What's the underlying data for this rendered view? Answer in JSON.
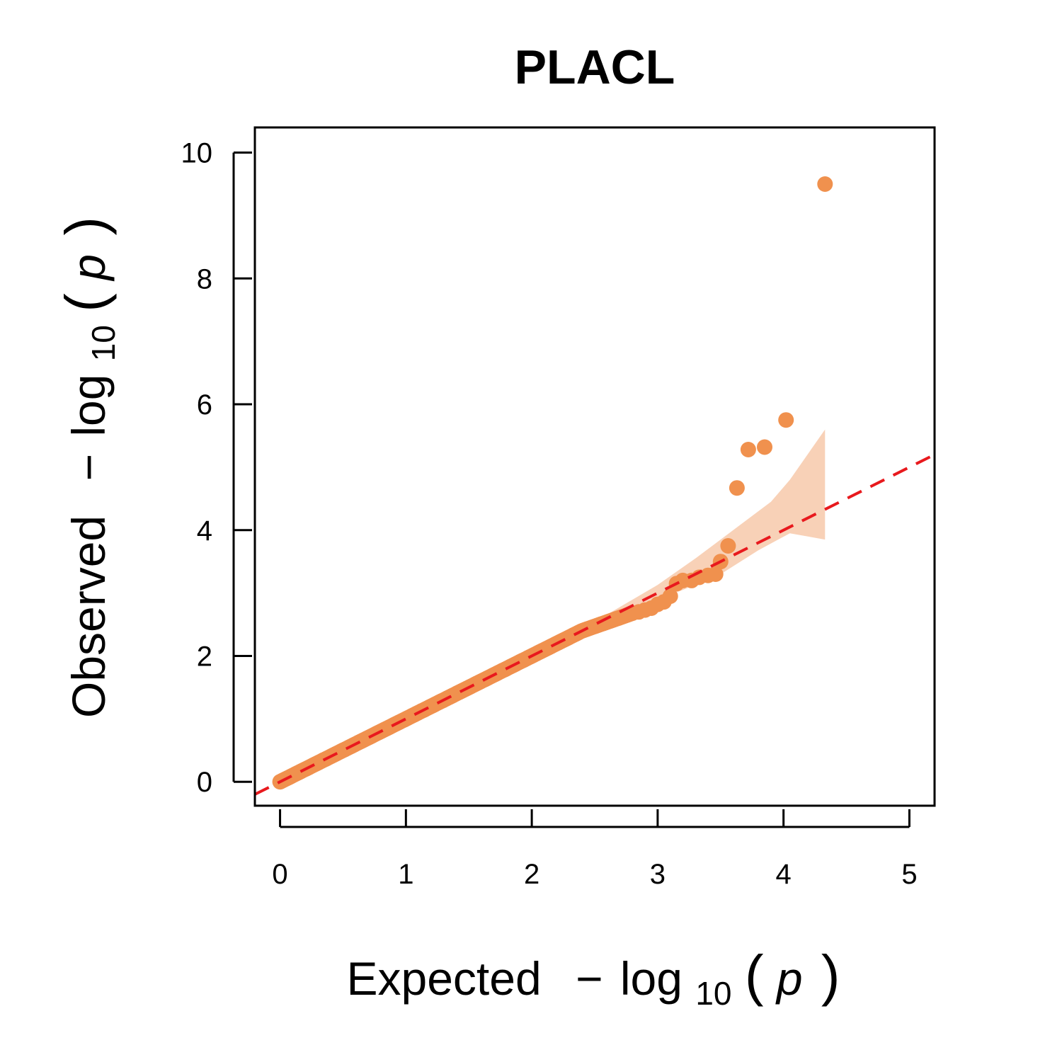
{
  "chart_data": {
    "type": "scatter",
    "title": "PLACL",
    "xlabel": {
      "prefix": "Expected",
      "minus": "−",
      "log": "log",
      "sub": "10",
      "open": "(",
      "var": "p",
      "close": ")"
    },
    "ylabel": {
      "prefix": "Observed",
      "minus": "−",
      "log": "log",
      "sub": "10",
      "open": "(",
      "var": "p",
      "close": ")"
    },
    "xlim": [
      -0.2,
      5.2
    ],
    "ylim": [
      -0.38,
      10.4
    ],
    "x_ticks": [
      "0",
      "1",
      "2",
      "3",
      "4",
      "5"
    ],
    "y_ticks": [
      "0",
      "2",
      "4",
      "6",
      "8",
      "10"
    ],
    "grid": false,
    "point_color": "#f0914e",
    "band_color": "#f5c29f",
    "reference_line_color": "#e8191d",
    "reference_line": {
      "slope": 1,
      "intercept": 0,
      "style": "dashed"
    },
    "confidence_band": {
      "upper": [
        [
          2.3,
          2.3
        ],
        [
          2.6,
          2.66
        ],
        [
          3.0,
          3.13
        ],
        [
          3.3,
          3.55
        ],
        [
          3.6,
          4.0
        ],
        [
          3.9,
          4.45
        ],
        [
          4.05,
          4.8
        ],
        [
          4.33,
          5.6
        ]
      ],
      "lower": [
        [
          4.33,
          3.85
        ],
        [
          4.05,
          3.95
        ],
        [
          3.8,
          3.68
        ],
        [
          3.5,
          3.3
        ],
        [
          3.2,
          3.05
        ],
        [
          2.9,
          2.82
        ],
        [
          2.6,
          2.57
        ],
        [
          2.3,
          2.3
        ]
      ]
    },
    "dense_points": {
      "x_start": 0.0,
      "x_end": 2.8,
      "count": 180
    },
    "points": [
      {
        "x": 2.85,
        "y": 2.7
      },
      {
        "x": 2.9,
        "y": 2.73
      },
      {
        "x": 2.95,
        "y": 2.76
      },
      {
        "x": 3.0,
        "y": 2.82
      },
      {
        "x": 3.05,
        "y": 2.86
      },
      {
        "x": 3.1,
        "y": 2.95
      },
      {
        "x": 3.15,
        "y": 3.15
      },
      {
        "x": 3.2,
        "y": 3.2
      },
      {
        "x": 3.27,
        "y": 3.2
      },
      {
        "x": 3.33,
        "y": 3.25
      },
      {
        "x": 3.4,
        "y": 3.28
      },
      {
        "x": 3.46,
        "y": 3.3
      },
      {
        "x": 3.5,
        "y": 3.5
      },
      {
        "x": 3.56,
        "y": 3.75
      },
      {
        "x": 3.63,
        "y": 4.67
      },
      {
        "x": 3.72,
        "y": 5.28
      },
      {
        "x": 3.85,
        "y": 5.32
      },
      {
        "x": 4.02,
        "y": 5.75
      },
      {
        "x": 4.33,
        "y": 9.5
      }
    ]
  }
}
